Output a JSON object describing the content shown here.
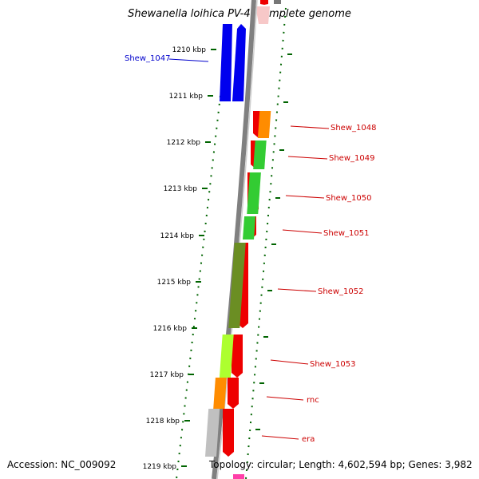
{
  "title": "Shewanella loihica PV-4, complete genome",
  "footer": {
    "accession": "Accession: NC_009092",
    "summary": "Topology: circular; Length: 4,602,594 bp; Genes: 3,982"
  },
  "ticks": [
    "1210 kbp",
    "1211 kbp",
    "1212 kbp",
    "1213 kbp",
    "1214 kbp",
    "1215 kbp",
    "1216 kbp",
    "1217 kbp",
    "1218 kbp",
    "1219 kbp"
  ],
  "genes": [
    {
      "name": "Shew_1047",
      "strand": "reverse",
      "color": "#0000ee"
    },
    {
      "name": "Shew_1048",
      "strand": "forward",
      "color": "#ee0000",
      "cog_color": "#ff8c00"
    },
    {
      "name": "Shew_1049",
      "strand": "forward",
      "color": "#ee0000",
      "cog_color": "#33cc33"
    },
    {
      "name": "Shew_1050",
      "strand": "forward",
      "color": "#ee0000",
      "cog_color": "#33cc33"
    },
    {
      "name": "Shew_1051",
      "strand": "forward",
      "color": "#ee0000",
      "cog_color": "#33cc33"
    },
    {
      "name": "Shew_1052",
      "strand": "forward",
      "color": "#ee0000",
      "cog_color": "#6b8e23"
    },
    {
      "name": "Shew_1053",
      "strand": "forward",
      "color": "#ee0000",
      "cog_color": "#adff2f"
    },
    {
      "name": "rnc",
      "strand": "forward",
      "color": "#ee0000",
      "cog_color": "#ff8c00"
    },
    {
      "name": "era",
      "strand": "forward",
      "color": "#ee0000",
      "cog_color": "#c0c0c0"
    }
  ],
  "colors": {
    "reverse_label": "#0000cc",
    "forward_label": "#cc0000",
    "tick": "#006400",
    "backbone": "#808080"
  }
}
